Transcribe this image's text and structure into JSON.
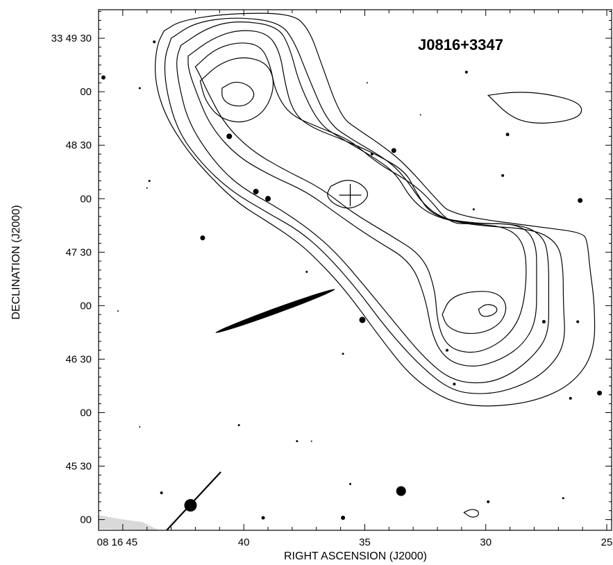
{
  "chart_data": {
    "type": "contour",
    "title": "J0816+3347",
    "xlabel": "RIGHT ASCENSION (J2000)",
    "ylabel": "DECLINATION (J2000)",
    "x_unit": "seconds of RA (08h16m)",
    "y_unit": "arcsec of Dec offset from 33 45 00",
    "xlim": [
      46.0,
      24.8
    ],
    "ylim": [
      -6,
      286
    ],
    "x_ticks": [
      {
        "value": 45,
        "label": "08 16 45"
      },
      {
        "value": 40,
        "label": "40"
      },
      {
        "value": 35,
        "label": "35"
      },
      {
        "value": 30,
        "label": "30"
      },
      {
        "value": 25,
        "label": "25"
      }
    ],
    "y_ticks": [
      {
        "value": 0,
        "label": "00"
      },
      {
        "value": 30,
        "label": "45 30"
      },
      {
        "value": 60,
        "label": "00"
      },
      {
        "value": 90,
        "label": "46 30"
      },
      {
        "value": 120,
        "label": "00"
      },
      {
        "value": 150,
        "label": "47 30"
      },
      {
        "value": 180,
        "label": "00"
      },
      {
        "value": 210,
        "label": "48 30"
      },
      {
        "value": 240,
        "label": "00"
      },
      {
        "value": 270,
        "label": "33 49 30"
      }
    ],
    "grid": false,
    "background": "grayscale optical image (stars and galaxies)",
    "contours": [
      {
        "level": 1,
        "points": [
          [
            43.3,
            274
          ],
          [
            42.6,
            280
          ],
          [
            40.6,
            284
          ],
          [
            38.0,
            284
          ],
          [
            37.3,
            275
          ],
          [
            36.8,
            256
          ],
          [
            36.0,
            226
          ],
          [
            35.3,
            219
          ],
          [
            34.2,
            209
          ],
          [
            33.3,
            199
          ],
          [
            31.8,
            176
          ],
          [
            31.5,
            173
          ],
          [
            30.5,
            169
          ],
          [
            27.7,
            164
          ],
          [
            26.0,
            161
          ],
          [
            25.8,
            156
          ],
          [
            25.7,
            141
          ],
          [
            25.5,
            121
          ],
          [
            25.5,
            94
          ],
          [
            26.4,
            76
          ],
          [
            28.0,
            66
          ],
          [
            30.0,
            63
          ],
          [
            31.5,
            66
          ],
          [
            33.0,
            79
          ],
          [
            34.2,
            99
          ],
          [
            35.8,
            129
          ],
          [
            37.2,
            149
          ],
          [
            38.0,
            158
          ],
          [
            39.0,
            167
          ],
          [
            40.2,
            177
          ],
          [
            41.3,
            191
          ],
          [
            42.4,
            208
          ],
          [
            43.3,
            228
          ],
          [
            43.7,
            248
          ],
          [
            43.6,
            266
          ],
          [
            43.3,
            274
          ]
        ]
      },
      {
        "level": 2,
        "points": [
          [
            43.0,
            270
          ],
          [
            42.0,
            279
          ],
          [
            40.3,
            282
          ],
          [
            38.5,
            279
          ],
          [
            37.9,
            268
          ],
          [
            37.3,
            247
          ],
          [
            36.5,
            222
          ],
          [
            35.5,
            213
          ],
          [
            34.1,
            202
          ],
          [
            33.4,
            193
          ],
          [
            32.6,
            177
          ],
          [
            31.8,
            169
          ],
          [
            30.5,
            165
          ],
          [
            28.0,
            163
          ],
          [
            27.0,
            155
          ],
          [
            26.8,
            141
          ],
          [
            26.8,
            122
          ],
          [
            26.7,
            98
          ],
          [
            27.5,
            83
          ],
          [
            28.7,
            74
          ],
          [
            30.0,
            70
          ],
          [
            31.4,
            72
          ],
          [
            32.7,
            86
          ],
          [
            34.1,
            107
          ],
          [
            35.3,
            129
          ],
          [
            36.6,
            149
          ],
          [
            37.7,
            162
          ],
          [
            39.0,
            172
          ],
          [
            40.5,
            184
          ],
          [
            41.7,
            199
          ],
          [
            42.7,
            217
          ],
          [
            43.2,
            240
          ],
          [
            43.3,
            258
          ],
          [
            43.0,
            270
          ]
        ]
      },
      {
        "level": 3,
        "points": [
          [
            42.6,
            266
          ],
          [
            41.5,
            276
          ],
          [
            40.3,
            280
          ],
          [
            38.6,
            277
          ],
          [
            38.1,
            265
          ],
          [
            37.7,
            244
          ],
          [
            36.9,
            222
          ],
          [
            36.0,
            214
          ],
          [
            34.6,
            203
          ],
          [
            33.7,
            194
          ],
          [
            33.1,
            180
          ],
          [
            32.3,
            171
          ],
          [
            31.0,
            166
          ],
          [
            28.6,
            166
          ],
          [
            27.6,
            159
          ],
          [
            27.4,
            146
          ],
          [
            27.4,
            125
          ],
          [
            27.4,
            104
          ],
          [
            28.0,
            92
          ],
          [
            29.0,
            81
          ],
          [
            30.1,
            76
          ],
          [
            31.4,
            78
          ],
          [
            32.5,
            90
          ],
          [
            33.8,
            111
          ],
          [
            35.0,
            131
          ],
          [
            36.2,
            150
          ],
          [
            37.3,
            163
          ],
          [
            38.6,
            175
          ],
          [
            40.2,
            187
          ],
          [
            41.3,
            202
          ],
          [
            42.3,
            223
          ],
          [
            42.7,
            245
          ],
          [
            42.8,
            258
          ],
          [
            42.6,
            266
          ]
        ]
      },
      {
        "level": 4,
        "points": [
          [
            42.3,
            260
          ],
          [
            41.3,
            270
          ],
          [
            40.2,
            275
          ],
          [
            39.0,
            273
          ],
          [
            38.5,
            262
          ],
          [
            38.3,
            245
          ],
          [
            38.0,
            230
          ],
          [
            37.4,
            221
          ],
          [
            35.7,
            212
          ],
          [
            34.4,
            204
          ],
          [
            33.3,
            195
          ],
          [
            32.9,
            184
          ],
          [
            32.2,
            170
          ],
          [
            30.5,
            166
          ],
          [
            28.6,
            166
          ],
          [
            27.9,
            156
          ],
          [
            27.9,
            135
          ],
          [
            27.9,
            112
          ],
          [
            28.4,
            99
          ],
          [
            29.3,
            90
          ],
          [
            30.5,
            85
          ],
          [
            31.6,
            89
          ],
          [
            32.2,
            102
          ],
          [
            32.5,
            125
          ],
          [
            33.1,
            145
          ],
          [
            34.6,
            157
          ],
          [
            36.1,
            171
          ],
          [
            37.4,
            184
          ],
          [
            38.9,
            193
          ],
          [
            40.3,
            204
          ],
          [
            41.4,
            221
          ],
          [
            42.0,
            241
          ],
          [
            42.3,
            253
          ],
          [
            42.3,
            260
          ]
        ]
      },
      {
        "level": 5,
        "points": [
          [
            42.0,
            254
          ],
          [
            41.2,
            264
          ],
          [
            40.2,
            268
          ],
          [
            39.3,
            266
          ],
          [
            38.9,
            255
          ],
          [
            38.7,
            240
          ],
          [
            38.1,
            227
          ],
          [
            36.9,
            220
          ],
          [
            35.6,
            213
          ],
          [
            34.5,
            200
          ],
          [
            33.2,
            190
          ],
          [
            32.4,
            181
          ],
          [
            31.5,
            166
          ],
          [
            30.5,
            166
          ],
          [
            29.1,
            164
          ],
          [
            28.4,
            155
          ],
          [
            28.3,
            136
          ],
          [
            28.5,
            116
          ],
          [
            29.0,
            104
          ],
          [
            29.8,
            96
          ],
          [
            30.7,
            93
          ],
          [
            31.6,
            97
          ],
          [
            32.0,
            110
          ],
          [
            32.1,
            130
          ],
          [
            32.6,
            148
          ],
          [
            34.0,
            160
          ],
          [
            35.5,
            172
          ],
          [
            36.8,
            186
          ],
          [
            38.3,
            196
          ],
          [
            39.7,
            207
          ],
          [
            40.8,
            222
          ],
          [
            41.5,
            240
          ],
          [
            41.8,
            249
          ],
          [
            42.0,
            254
          ]
        ]
      },
      {
        "level": 6,
        "points": [
          [
            41.8,
            246
          ],
          [
            41.0,
            256
          ],
          [
            40.0,
            260
          ],
          [
            39.0,
            256
          ],
          [
            38.7,
            244
          ],
          [
            39.1,
            229
          ],
          [
            40.0,
            222
          ],
          [
            41.0,
            225
          ],
          [
            41.6,
            235
          ],
          [
            41.8,
            246
          ]
        ]
      },
      {
        "level": 7,
        "points": [
          [
            40.9,
            242
          ],
          [
            40.4,
            246
          ],
          [
            39.8,
            244
          ],
          [
            39.5,
            238
          ],
          [
            39.9,
            232
          ],
          [
            40.5,
            232
          ],
          [
            40.9,
            236
          ],
          [
            40.9,
            242
          ]
        ]
      },
      {
        "level": 8,
        "points": [
          [
            36.4,
            187
          ],
          [
            35.8,
            191
          ],
          [
            35.2,
            189
          ],
          [
            34.8,
            183
          ],
          [
            35.1,
            177
          ],
          [
            35.7,
            174
          ],
          [
            36.3,
            177
          ],
          [
            36.6,
            182
          ],
          [
            36.4,
            187
          ]
        ]
      },
      {
        "level": 9,
        "points": [
          [
            31.8,
            115
          ],
          [
            31.5,
            124
          ],
          [
            30.7,
            128
          ],
          [
            29.6,
            128
          ],
          [
            29.1,
            121
          ],
          [
            29.3,
            111
          ],
          [
            30.0,
            105
          ],
          [
            30.9,
            104
          ],
          [
            31.6,
            108
          ],
          [
            31.8,
            115
          ]
        ]
      },
      {
        "level": 10,
        "points": [
          [
            30.3,
            118
          ],
          [
            30.0,
            121
          ],
          [
            29.6,
            120
          ],
          [
            29.5,
            117
          ],
          [
            29.8,
            114
          ],
          [
            30.2,
            114
          ],
          [
            30.3,
            118
          ]
        ]
      },
      {
        "level": 11,
        "points": [
          [
            29.9,
            238
          ],
          [
            28.8,
            240
          ],
          [
            27.5,
            239
          ],
          [
            26.1,
            234
          ],
          [
            26.0,
            227
          ],
          [
            26.8,
            223
          ],
          [
            28.1,
            222
          ],
          [
            29.0,
            226
          ],
          [
            29.9,
            238
          ]
        ]
      },
      {
        "level": 12,
        "points": [
          [
            30.9,
            4
          ],
          [
            30.6,
            6
          ],
          [
            30.3,
            5
          ],
          [
            30.3,
            2
          ],
          [
            30.6,
            1
          ],
          [
            30.9,
            4
          ]
        ]
      }
    ],
    "markers": [
      {
        "type": "cross",
        "x": 35.6,
        "y": 182
      }
    ],
    "sources": [
      {
        "x": 43.7,
        "y": 268,
        "size": 2
      },
      {
        "x": 45.8,
        "y": 248,
        "size": 3
      },
      {
        "x": 44.3,
        "y": 242,
        "size": 1.5
      },
      {
        "x": 40.6,
        "y": 215,
        "size": 4
      },
      {
        "x": 43.9,
        "y": 190,
        "size": 1.5
      },
      {
        "x": 44.0,
        "y": 186,
        "size": 1
      },
      {
        "x": 39.0,
        "y": 180,
        "size": 4
      },
      {
        "x": 39.5,
        "y": 184,
        "size": 4
      },
      {
        "x": 41.7,
        "y": 158,
        "size": 3.5
      },
      {
        "x": 37.4,
        "y": 139,
        "size": 1.5
      },
      {
        "x": 45.2,
        "y": 117,
        "size": 1
      },
      {
        "x": 35.1,
        "y": 112,
        "size": 4.5
      },
      {
        "x": 35.9,
        "y": 93,
        "size": 1.5
      },
      {
        "x": 34.7,
        "y": 205,
        "size": 2
      },
      {
        "x": 33.8,
        "y": 207,
        "size": 3.5
      },
      {
        "x": 32.7,
        "y": 227,
        "size": 1
      },
      {
        "x": 30.8,
        "y": 251,
        "size": 2
      },
      {
        "x": 29.1,
        "y": 216,
        "size": 2.5
      },
      {
        "x": 29.3,
        "y": 193,
        "size": 2
      },
      {
        "x": 26.1,
        "y": 179,
        "size": 3.5
      },
      {
        "x": 31.6,
        "y": 95,
        "size": 2
      },
      {
        "x": 26.5,
        "y": 68,
        "size": 2
      },
      {
        "x": 25.3,
        "y": 71,
        "size": 3.5
      },
      {
        "x": 27.6,
        "y": 111,
        "size": 2.5
      },
      {
        "x": 26.2,
        "y": 111,
        "size": 2
      },
      {
        "x": 42.2,
        "y": 8,
        "size": 9
      },
      {
        "x": 33.5,
        "y": 16,
        "size": 7
      },
      {
        "x": 39.2,
        "y": 1,
        "size": 2.5
      },
      {
        "x": 35.9,
        "y": 1,
        "size": 3
      },
      {
        "x": 43.4,
        "y": 15,
        "size": 2
      },
      {
        "x": 35.6,
        "y": 20,
        "size": 1.5
      },
      {
        "x": 29.9,
        "y": 10,
        "size": 2
      },
      {
        "x": 26.8,
        "y": 12,
        "size": 1.5
      },
      {
        "x": 40.2,
        "y": 53,
        "size": 1.5
      },
      {
        "x": 37.8,
        "y": 44,
        "size": 1.5
      },
      {
        "x": 37.2,
        "y": 44,
        "size": 1
      },
      {
        "x": 44.3,
        "y": 52,
        "size": 1
      },
      {
        "x": 30.5,
        "y": 174,
        "size": 1.5
      },
      {
        "x": 34.9,
        "y": 245,
        "size": 1
      },
      {
        "x": 31.3,
        "y": 76,
        "size": 2
      }
    ],
    "galaxy": {
      "x": 38.7,
      "y": 117,
      "rx": 1.3,
      "ry": 2.5,
      "angle_deg": -20
    }
  }
}
